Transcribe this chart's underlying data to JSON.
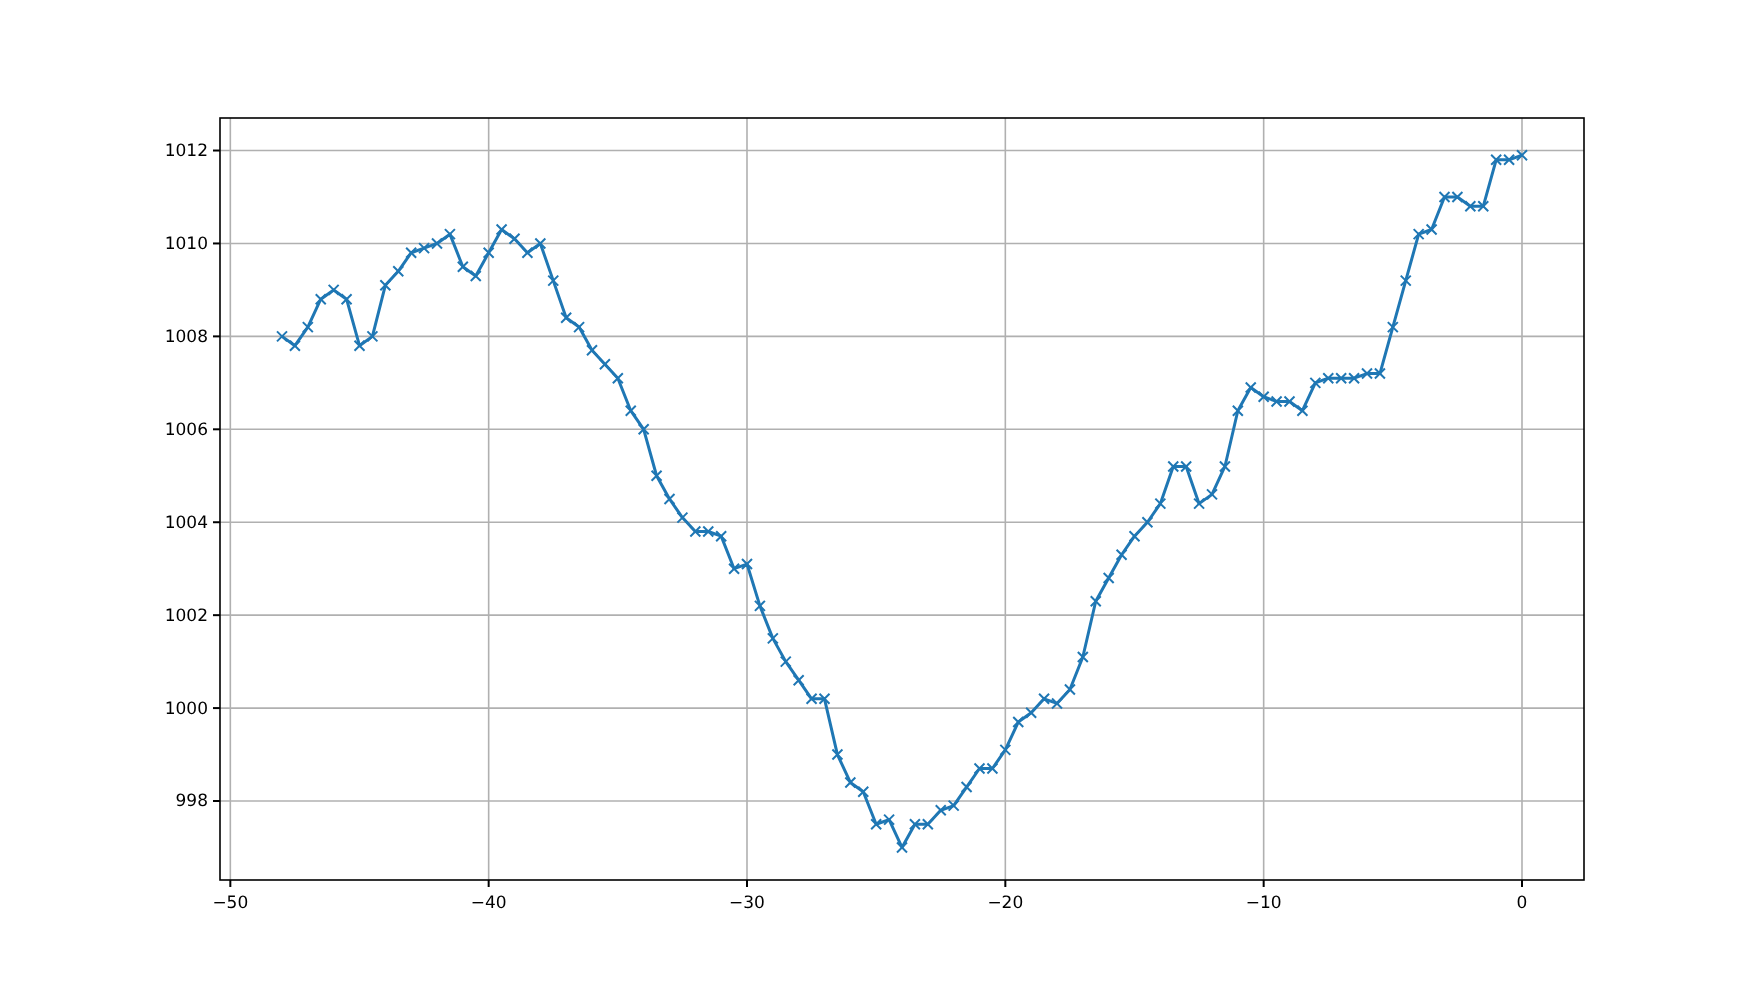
{
  "chart_data": {
    "type": "line",
    "x": [
      -48,
      -47.5,
      -47,
      -46.5,
      -46,
      -45.5,
      -45,
      -44.5,
      -44,
      -43.5,
      -43,
      -42.5,
      -42,
      -41.5,
      -41,
      -40.5,
      -40,
      -39.5,
      -39,
      -38.5,
      -38,
      -37.5,
      -37,
      -36.5,
      -36,
      -35.5,
      -35,
      -34.5,
      -34,
      -33.5,
      -33,
      -32.5,
      -32,
      -31.5,
      -31,
      -30.5,
      -30,
      -29.5,
      -29,
      -28.5,
      -28,
      -27.5,
      -27,
      -26.5,
      -26,
      -25.5,
      -25,
      -24.5,
      -24,
      -23.5,
      -23,
      -22.5,
      -22,
      -21.5,
      -21,
      -20.5,
      -20,
      -19.5,
      -19,
      -18.5,
      -18,
      -17.5,
      -17,
      -16.5,
      -16,
      -15.5,
      -15,
      -14.5,
      -14,
      -13.5,
      -13,
      -12.5,
      -12,
      -11.5,
      -11,
      -10.5,
      -10,
      -9.5,
      -9,
      -8.5,
      -8,
      -7.5,
      -7,
      -6.5,
      -6,
      -5.5,
      -5,
      -4.5,
      -4,
      -3.5,
      -3,
      -2.5,
      -2,
      -1.5,
      -1,
      -0.5,
      0
    ],
    "series": [
      {
        "color": "#1f77b4",
        "values": [
          1008.0,
          1007.8,
          1008.2,
          1008.8,
          1009.0,
          1008.8,
          1007.8,
          1008.0,
          1009.1,
          1009.4,
          1009.8,
          1009.9,
          1010.0,
          1010.2,
          1009.5,
          1009.3,
          1009.8,
          1010.3,
          1010.1,
          1009.8,
          1010.0,
          1009.2,
          1008.4,
          1008.2,
          1007.7,
          1007.4,
          1007.1,
          1006.4,
          1006.0,
          1005.0,
          1004.5,
          1004.1,
          1003.8,
          1003.8,
          1003.7,
          1003.0,
          1003.1,
          1002.2,
          1001.5,
          1001.0,
          1000.6,
          1000.2,
          1000.2,
          999.0,
          998.4,
          998.2,
          997.5,
          997.6,
          997.0,
          997.5,
          997.5,
          997.8,
          997.9,
          998.3,
          998.7,
          998.7,
          999.1,
          999.7,
          999.9,
          1000.2,
          1000.1,
          1000.4,
          1001.1,
          1002.3,
          1002.8,
          1003.3,
          1003.7,
          1004.0,
          1004.4,
          1005.2,
          1005.2,
          1004.4,
          1004.6,
          1005.2,
          1006.4,
          1006.9,
          1006.7,
          1006.6,
          1006.6,
          1006.4,
          1007.0,
          1007.1,
          1007.1,
          1007.1,
          1007.2,
          1007.2,
          1008.2,
          1009.2,
          1010.2,
          1010.3,
          1011.0,
          1011.0,
          1010.8,
          1010.8,
          1011.8,
          1011.8,
          1011.9
        ]
      }
    ],
    "xlim": [
      -50.4,
      2.4
    ],
    "xticks": [
      -50,
      -40,
      -30,
      -20,
      -10,
      0
    ],
    "ylim": [
      996.3,
      1012.7
    ],
    "yticks": [
      998,
      1000,
      1002,
      1004,
      1006,
      1008,
      1010,
      1012
    ],
    "grid": true,
    "marker": "cross",
    "line_style": "solid"
  }
}
